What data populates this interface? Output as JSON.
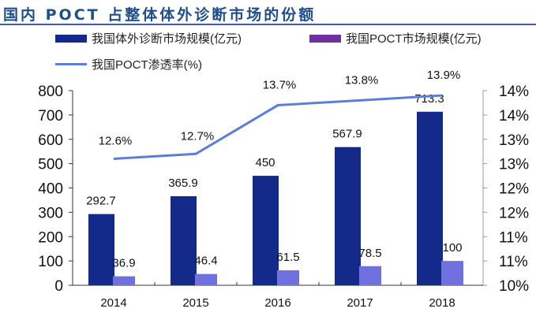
{
  "title": "国内 POCT 占整体体外诊断市场的份额",
  "chart_data": {
    "type": "bar+line",
    "categories": [
      "2014",
      "2015",
      "2016",
      "2017",
      "2018"
    ],
    "series": [
      {
        "name": "我国体外诊断市场规模(亿元)",
        "type": "bar",
        "axis": "left",
        "color": "#132a8a",
        "values": [
          292.7,
          365.9,
          450,
          567.9,
          713.3
        ],
        "labels": [
          "292.7",
          "365.9",
          "450",
          "567.9",
          "713.3"
        ]
      },
      {
        "name": "我国POCT市场规模(亿元)",
        "type": "bar",
        "axis": "left",
        "color": "#7070e0",
        "values": [
          36.9,
          46.4,
          61.5,
          78.5,
          100
        ],
        "labels": [
          "36.9",
          "46.4",
          "61.5",
          "78.5",
          "100"
        ]
      },
      {
        "name": "我国POCT渗透率(%)",
        "type": "line",
        "axis": "right",
        "color": "#5b7fd4",
        "values": [
          12.6,
          12.7,
          13.7,
          13.8,
          13.9
        ],
        "labels": [
          "12.6%",
          "12.7%",
          "13.7%",
          "13.8%",
          "13.9%"
        ]
      }
    ],
    "left_axis": {
      "ylim": [
        0,
        800
      ],
      "ticks": [
        "0",
        "100",
        "200",
        "300",
        "400",
        "500",
        "600",
        "700",
        "800"
      ]
    },
    "right_axis": {
      "ylim": [
        10,
        14
      ],
      "ticks": [
        "10%",
        "11%",
        "11%",
        "12%",
        "12%",
        "13%",
        "13%",
        "14%",
        "14%"
      ]
    },
    "legend": "top",
    "grid": false
  }
}
